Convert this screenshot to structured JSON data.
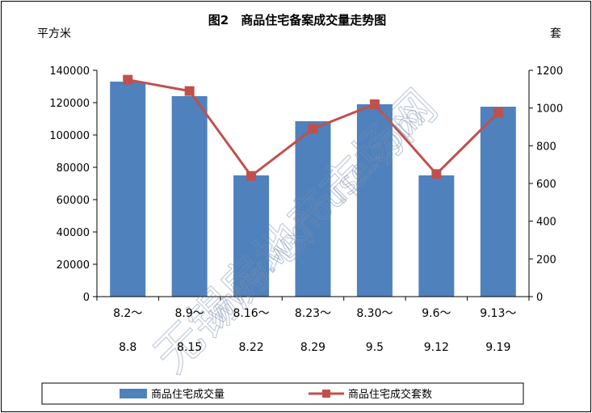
{
  "chart_data": {
    "type": "bar",
    "title": "图2　商品住宅备案成交量走势图",
    "ylabel_left": "平方米",
    "ylabel_right": "套",
    "categories": [
      [
        "8.2～",
        "8.8"
      ],
      [
        "8.9～",
        "8.15"
      ],
      [
        "8.16～",
        "8.22"
      ],
      [
        "8.23～",
        "8.29"
      ],
      [
        "8.30～",
        "9.5"
      ],
      [
        "9.6～",
        "9.12"
      ],
      [
        "9.13～",
        "9.19"
      ]
    ],
    "y_left": {
      "min": 0,
      "max": 140000,
      "step": 20000,
      "ticks": [
        "0",
        "20000",
        "40000",
        "60000",
        "80000",
        "100000",
        "120000",
        "140000"
      ]
    },
    "y_right": {
      "min": 0,
      "max": 1200,
      "step": 200,
      "ticks": [
        "0",
        "200",
        "400",
        "600",
        "800",
        "1000",
        "1200"
      ]
    },
    "series": [
      {
        "name": "商品住宅成交量",
        "type": "bar",
        "axis": "left",
        "color": "#4f81bd",
        "values": [
          133000,
          124000,
          75000,
          108500,
          119000,
          75000,
          117500
        ]
      },
      {
        "name": "商品住宅成交套数",
        "type": "line",
        "axis": "right",
        "color": "#c0504d",
        "values": [
          1150,
          1090,
          640,
          890,
          1020,
          650,
          975
        ]
      }
    ],
    "grid": false,
    "legend": "bottom",
    "watermark": "无锡房地产市场网 www.wxhouse.com"
  }
}
